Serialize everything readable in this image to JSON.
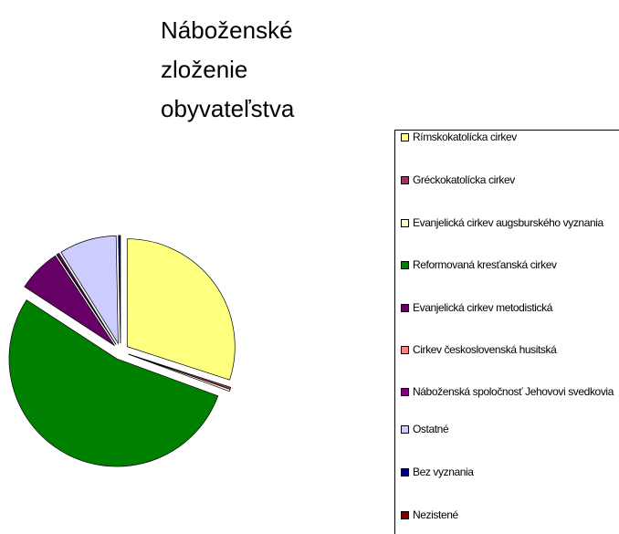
{
  "chart_data": {
    "type": "pie",
    "title": "Náboženské zloženie obyvateľstva",
    "categories": [
      "Rímskokatolícka cirkev",
      "Gréckokatolícka cirkev",
      "Evanjelická cirkev augsburského vyznania",
      "Reformovaná kresťanská cirkev",
      "Evanjelická cirkev metodistická",
      "Cirkev československá husitská",
      "Náboženská spoločnosť Jehovovi svedkovia",
      "Ostatné",
      "Bez vyznania",
      "Nezistené"
    ],
    "values": [
      30,
      0.3,
      0.3,
      53.6,
      6.5,
      0.1,
      0.3,
      8.6,
      0.2,
      0.1
    ],
    "colors": [
      "#ffff80",
      "#993366",
      "#ffffcc",
      "#008000",
      "#660066",
      "#ff8080",
      "#800080",
      "#ccccff",
      "#000080",
      "#800000"
    ],
    "legend": "right"
  }
}
